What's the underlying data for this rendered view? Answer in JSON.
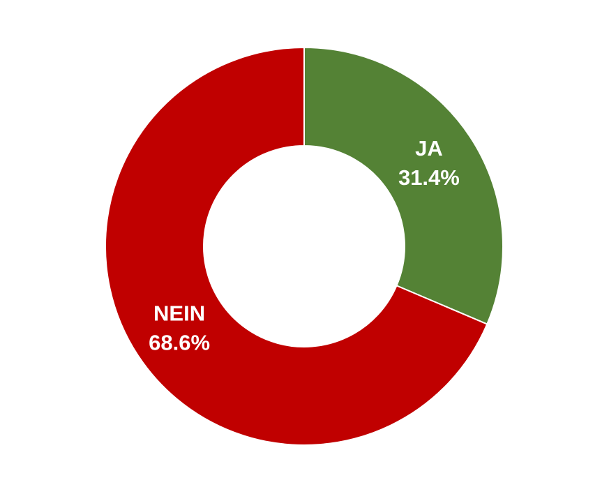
{
  "chart_data": {
    "type": "donut",
    "categories": [
      "JA",
      "NEIN"
    ],
    "values": [
      31.4,
      68.6
    ],
    "value_labels": [
      "31.4%",
      "68.6%"
    ],
    "colors": [
      "#548235",
      "#c00000"
    ]
  }
}
